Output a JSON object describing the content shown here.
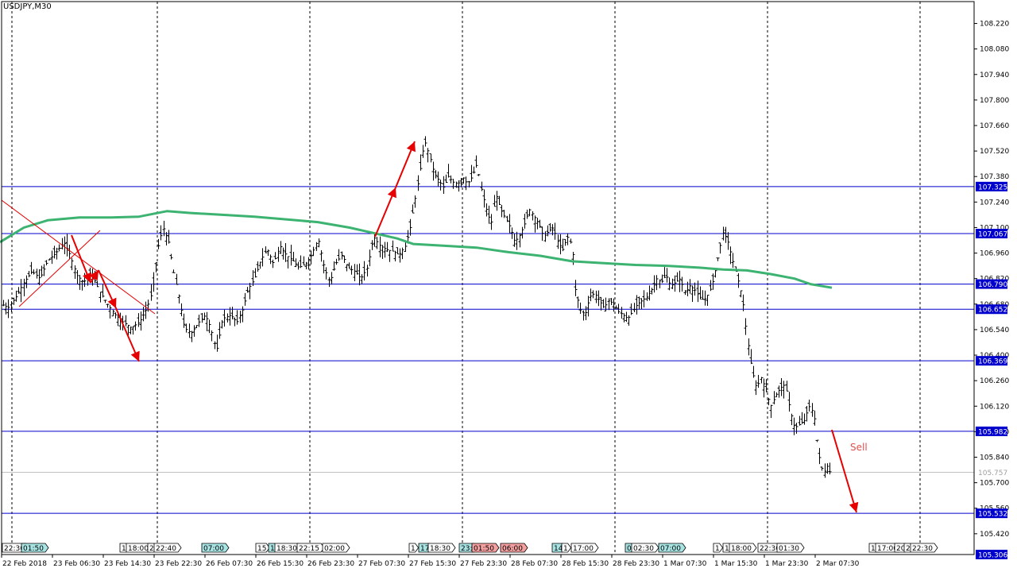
{
  "chart_data": {
    "type": "candlestick",
    "title": "USDJPY,M30",
    "ylim": [
      105.306,
      108.34
    ],
    "y_ticks": [
      "108.220",
      "108.080",
      "107.940",
      "107.800",
      "107.660",
      "107.520",
      "107.380",
      "107.240",
      "107.100",
      "106.960",
      "106.820",
      "106.680",
      "106.540",
      "106.400",
      "106.260",
      "106.120",
      "105.980",
      "105.840",
      "105.700",
      "105.560",
      "105.420"
    ],
    "x_ticks": [
      "22 Feb 2018",
      "23 Feb 06:30",
      "23 Feb 14:30",
      "23 Feb 22:30",
      "26 Feb 07:30",
      "26 Feb 15:30",
      "26 Feb 23:30",
      "27 Feb 07:30",
      "27 Feb 15:30",
      "27 Feb 23:30",
      "28 Feb 07:30",
      "28 Feb 15:30",
      "28 Feb 23:30",
      "1 Mar 07:30",
      "1 Mar 15:30",
      "1 Mar 23:30",
      "2 Mar 07:30"
    ],
    "horizontal_levels": [
      {
        "price": 107.325,
        "label": "107.325"
      },
      {
        "price": 107.067,
        "label": "107.067"
      },
      {
        "price": 106.79,
        "label": "106.790"
      },
      {
        "price": 106.652,
        "label": "106.652"
      },
      {
        "price": 106.369,
        "label": "106.369"
      },
      {
        "price": 105.982,
        "label": "105.982"
      },
      {
        "price": 105.532,
        "label": "105.532"
      }
    ],
    "bottom_level": {
      "price": 105.306,
      "label": "105.306"
    },
    "current_price": {
      "price": 105.757,
      "label": "105.757"
    },
    "moving_average": [
      [
        0,
        107.02
      ],
      [
        30,
        107.1
      ],
      [
        60,
        107.14
      ],
      [
        100,
        107.155
      ],
      [
        140,
        107.155
      ],
      [
        175,
        107.16
      ],
      [
        210,
        107.19
      ],
      [
        240,
        107.18
      ],
      [
        280,
        107.17
      ],
      [
        320,
        107.16
      ],
      [
        360,
        107.145
      ],
      [
        400,
        107.13
      ],
      [
        440,
        107.1
      ],
      [
        470,
        107.07
      ],
      [
        500,
        107.04
      ],
      [
        520,
        107.01
      ],
      [
        560,
        107.0
      ],
      [
        600,
        106.99
      ],
      [
        640,
        106.965
      ],
      [
        680,
        106.945
      ],
      [
        720,
        106.915
      ],
      [
        760,
        106.905
      ],
      [
        800,
        106.895
      ],
      [
        840,
        106.89
      ],
      [
        880,
        106.88
      ],
      [
        910,
        106.87
      ],
      [
        940,
        106.865
      ],
      [
        970,
        106.845
      ],
      [
        1000,
        106.82
      ],
      [
        1020,
        106.79
      ],
      [
        1047,
        106.77
      ]
    ],
    "price_path": [
      [
        2,
        106.68
      ],
      [
        10,
        106.66
      ],
      [
        20,
        106.72
      ],
      [
        30,
        106.8
      ],
      [
        40,
        106.86
      ],
      [
        50,
        106.82
      ],
      [
        60,
        106.92
      ],
      [
        70,
        106.96
      ],
      [
        80,
        107.02
      ],
      [
        88,
        106.95
      ],
      [
        96,
        106.84
      ],
      [
        105,
        106.8
      ],
      [
        115,
        106.85
      ],
      [
        125,
        106.75
      ],
      [
        135,
        106.68
      ],
      [
        145,
        106.62
      ],
      [
        155,
        106.58
      ],
      [
        165,
        106.55
      ],
      [
        175,
        106.58
      ],
      [
        185,
        106.66
      ],
      [
        192,
        106.76
      ],
      [
        198,
        106.98
      ],
      [
        205,
        107.1
      ],
      [
        212,
        107.02
      ],
      [
        218,
        106.86
      ],
      [
        225,
        106.72
      ],
      [
        232,
        106.55
      ],
      [
        240,
        106.52
      ],
      [
        250,
        106.58
      ],
      [
        258,
        106.62
      ],
      [
        265,
        106.55
      ],
      [
        272,
        106.42
      ],
      [
        280,
        106.6
      ],
      [
        290,
        106.62
      ],
      [
        298,
        106.58
      ],
      [
        305,
        106.65
      ],
      [
        312,
        106.76
      ],
      [
        320,
        106.82
      ],
      [
        328,
        106.92
      ],
      [
        336,
        106.98
      ],
      [
        344,
        106.9
      ],
      [
        352,
        107.0
      ],
      [
        360,
        106.95
      ],
      [
        368,
        106.92
      ],
      [
        376,
        106.88
      ],
      [
        384,
        106.9
      ],
      [
        392,
        106.95
      ],
      [
        400,
        107.04
      ],
      [
        408,
        106.88
      ],
      [
        415,
        106.8
      ],
      [
        422,
        106.9
      ],
      [
        430,
        106.95
      ],
      [
        438,
        106.88
      ],
      [
        446,
        106.86
      ],
      [
        454,
        106.82
      ],
      [
        462,
        106.88
      ],
      [
        470,
        107.05
      ],
      [
        478,
        107.0
      ],
      [
        486,
        106.98
      ],
      [
        494,
        106.97
      ],
      [
        502,
        106.95
      ],
      [
        510,
        107.0
      ],
      [
        516,
        107.1
      ],
      [
        522,
        107.25
      ],
      [
        528,
        107.4
      ],
      [
        534,
        107.58
      ],
      [
        540,
        107.5
      ],
      [
        546,
        107.4
      ],
      [
        552,
        107.36
      ],
      [
        558,
        107.32
      ],
      [
        564,
        107.38
      ],
      [
        570,
        107.35
      ],
      [
        576,
        107.34
      ],
      [
        582,
        107.38
      ],
      [
        588,
        107.34
      ],
      [
        594,
        107.38
      ],
      [
        600,
        107.45
      ],
      [
        606,
        107.3
      ],
      [
        612,
        107.2
      ],
      [
        618,
        107.12
      ],
      [
        624,
        107.28
      ],
      [
        630,
        107.2
      ],
      [
        636,
        107.15
      ],
      [
        642,
        107.1
      ],
      [
        648,
        107.02
      ],
      [
        654,
        107.06
      ],
      [
        660,
        107.12
      ],
      [
        666,
        107.2
      ],
      [
        672,
        107.16
      ],
      [
        678,
        107.12
      ],
      [
        684,
        107.05
      ],
      [
        690,
        107.08
      ],
      [
        696,
        107.1
      ],
      [
        702,
        107.02
      ],
      [
        708,
        106.98
      ],
      [
        714,
        107.05
      ],
      [
        720,
        107.0
      ],
      [
        724,
        106.76
      ],
      [
        730,
        106.65
      ],
      [
        736,
        106.62
      ],
      [
        742,
        106.72
      ],
      [
        748,
        106.74
      ],
      [
        754,
        106.7
      ],
      [
        760,
        106.66
      ],
      [
        766,
        106.7
      ],
      [
        772,
        106.68
      ],
      [
        778,
        106.64
      ],
      [
        784,
        106.62
      ],
      [
        790,
        106.6
      ],
      [
        796,
        106.64
      ],
      [
        802,
        106.68
      ],
      [
        808,
        106.7
      ],
      [
        814,
        106.72
      ],
      [
        820,
        106.76
      ],
      [
        826,
        106.82
      ],
      [
        832,
        106.8
      ],
      [
        838,
        106.84
      ],
      [
        844,
        106.78
      ],
      [
        850,
        106.8
      ],
      [
        856,
        106.82
      ],
      [
        862,
        106.74
      ],
      [
        868,
        106.78
      ],
      [
        874,
        106.76
      ],
      [
        880,
        106.72
      ],
      [
        886,
        106.7
      ],
      [
        892,
        106.74
      ],
      [
        898,
        106.82
      ],
      [
        904,
        106.95
      ],
      [
        910,
        107.08
      ],
      [
        916,
        107.02
      ],
      [
        922,
        106.92
      ],
      [
        928,
        106.82
      ],
      [
        934,
        106.72
      ],
      [
        940,
        106.5
      ],
      [
        946,
        106.32
      ],
      [
        952,
        106.22
      ],
      [
        958,
        106.28
      ],
      [
        964,
        106.2
      ],
      [
        970,
        106.12
      ],
      [
        976,
        106.18
      ],
      [
        982,
        106.22
      ],
      [
        988,
        106.24
      ],
      [
        994,
        106.1
      ],
      [
        1000,
        106.0
      ],
      [
        1006,
        106.02
      ],
      [
        1012,
        106.04
      ],
      [
        1018,
        106.12
      ],
      [
        1024,
        106.08
      ],
      [
        1030,
        105.86
      ],
      [
        1036,
        105.75
      ],
      [
        1042,
        105.8
      ],
      [
        1046,
        105.72
      ]
    ],
    "annotation_sell": "Sell",
    "session_markers": [
      {
        "label": "22:30",
        "style": "white"
      },
      {
        "label": "01:50",
        "style": "cyan"
      },
      {
        "label": "1",
        "style": "white"
      },
      {
        "label": "18:00",
        "style": "white"
      },
      {
        "label": "2",
        "style": "white"
      },
      {
        "label": "22:40",
        "style": "white"
      },
      {
        "label": "07:00",
        "style": "cyan"
      },
      {
        "label": "15",
        "style": "white"
      },
      {
        "label": "1",
        "style": "cyan"
      },
      {
        "label": "18:30",
        "style": "white"
      },
      {
        "label": "22:15",
        "style": "white"
      },
      {
        "label": "02:00",
        "style": "white"
      },
      {
        "label": "1",
        "style": "white"
      },
      {
        "label": "17",
        "style": "cyan"
      },
      {
        "label": "18:30",
        "style": "white"
      },
      {
        "label": "23:",
        "style": "cyan"
      },
      {
        "label": "01:50",
        "style": "red"
      },
      {
        "label": "06:00",
        "style": "red"
      },
      {
        "label": "14",
        "style": "cyan"
      },
      {
        "label": "1",
        "style": "white"
      },
      {
        "label": "17:00",
        "style": "white"
      },
      {
        "label": "0",
        "style": "cyan"
      },
      {
        "label": "02:30",
        "style": "white"
      },
      {
        "label": "07:00",
        "style": "cyan"
      },
      {
        "label": "1",
        "style": "white"
      },
      {
        "label": "1",
        "style": "white"
      },
      {
        "label": "18:00",
        "style": "white"
      },
      {
        "label": "22:30",
        "style": "white"
      },
      {
        "label": "01:30",
        "style": "white"
      },
      {
        "label": "15",
        "style": "white"
      },
      {
        "label": "17:00",
        "style": "white"
      },
      {
        "label": "20",
        "style": "white"
      },
      {
        "label": "2",
        "style": "white"
      },
      {
        "label": "22:30",
        "style": "white"
      }
    ],
    "colors": {
      "background": "#ffffff",
      "bars": "#000000",
      "level_line": "#0000cc",
      "level_tag_bg": "#0000cc",
      "level_tag_text": "#ffffff",
      "moving_average": "#3cb371",
      "arrows": "#e60000",
      "sell_text": "#e05050",
      "grid_vertical": "#000000",
      "current_price": "#c0c0c0"
    }
  }
}
